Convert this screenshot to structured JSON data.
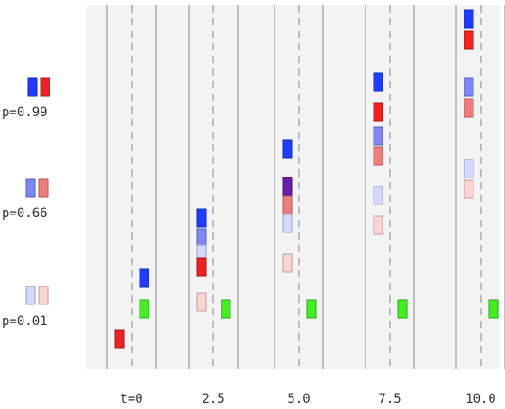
{
  "legend": [
    {
      "label": "p=0.99",
      "blue": "#1f3cff",
      "red": "#ee2222"
    },
    {
      "label": "p=0.66",
      "blue": "#7f88f2",
      "red": "#ee7f7f"
    },
    {
      "label": "p=0.01",
      "blue": "#d4d8fb",
      "red": "#fbd4d4"
    }
  ],
  "time_labels": [
    "t=0",
    "2.5",
    "5.0",
    "7.5",
    "10.0"
  ],
  "colors": {
    "background": "#ffffff",
    "panel": "#f3f3f3",
    "road_line": "#888888",
    "lane_dash": "#999999",
    "blue_099": "#1f3cff",
    "blue_066": "#7f88f2",
    "blue_001": "#d4d8fb",
    "red_099": "#ee2222",
    "red_066": "#ee7f7f",
    "red_001": "#fbd4d4",
    "purple": "#6a1fa8",
    "green": "#44ee22"
  }
}
